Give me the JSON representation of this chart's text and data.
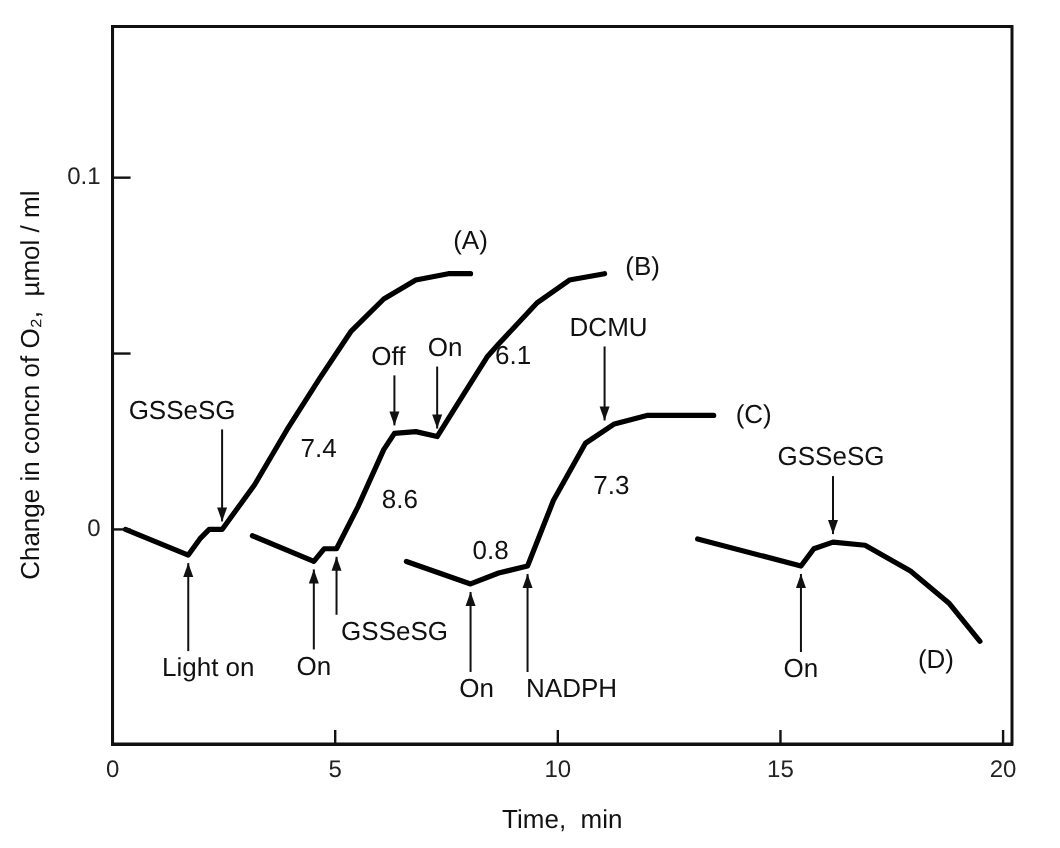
{
  "chart_data": {
    "type": "line",
    "xlabel": "Time,  min",
    "ylabel": "Change in concn of O₂,  µmol / ml",
    "xlim": [
      0,
      20.2
    ],
    "ylim": [
      -0.061,
      0.143
    ],
    "xticks": [
      0,
      5,
      10,
      15,
      20
    ],
    "yticks": [
      0,
      {
        "value": 0.05,
        "label": null
      },
      {
        "value": 0.1,
        "label": "0.1"
      }
    ],
    "grid": false,
    "legend": false,
    "marker": "none",
    "line_style": "solid",
    "series": [
      {
        "color": "#000000",
        "x": [
          0.29,
          1.7,
          1.96,
          2.17,
          2.46,
          3.19,
          3.91,
          4.64,
          5.36,
          6.09,
          6.81,
          7.54,
          8.04
        ],
        "values": [
          0,
          -0.0073,
          -0.0027,
          0,
          0,
          0.0127,
          0.0282,
          0.0427,
          0.0564,
          0.0655,
          0.0709,
          0.0727,
          0.0727
        ]
      },
      {
        "color": "#000000",
        "x": [
          3.14,
          4.52,
          4.75,
          5.03,
          5.51,
          6.09,
          6.33,
          6.81,
          7.29,
          7.83,
          8.41,
          8.67,
          9.54,
          10.26,
          11.05
        ],
        "values": [
          -0.0018,
          -0.0091,
          -0.0055,
          -0.0055,
          0.0064,
          0.0227,
          0.0273,
          0.0278,
          0.0264,
          0.0373,
          0.049,
          0.0527,
          0.0645,
          0.0709,
          0.0727
        ]
      },
      {
        "color": "#000000",
        "x": [
          6.6,
          8.04,
          8.67,
          9.32,
          9.9,
          10.62,
          11.27,
          12.0,
          13.5
        ],
        "values": [
          -0.0091,
          -0.0155,
          -0.0124,
          -0.0104,
          0.0082,
          0.0245,
          0.03,
          0.0324,
          0.0324
        ]
      },
      {
        "color": "#000000",
        "x": [
          13.14,
          15.46,
          15.75,
          16.18,
          16.9,
          17.92,
          18.78,
          19.48
        ],
        "values": [
          -0.0027,
          -0.0104,
          -0.0055,
          -0.0036,
          -0.0045,
          -0.0118,
          -0.0209,
          -0.0318
        ]
      }
    ],
    "annotations": [
      {
        "text": "(A)",
        "x": 8.04,
        "y": 0.0727
      },
      {
        "text": "GSSeSG",
        "x": 2.46,
        "y": 0
      },
      {
        "text": "7.4",
        "x": 3.91,
        "y": 0.0282
      },
      {
        "text": "Light on",
        "x": 1.7,
        "y": -0.0073
      },
      {
        "text": "On",
        "x": 4.52,
        "y": -0.0091
      },
      {
        "text": "GSSeSG",
        "x": 5.03,
        "y": -0.0055
      },
      {
        "text": "8.6",
        "x": 5.51,
        "y": 0.0064
      },
      {
        "text": "Off",
        "x": 6.33,
        "y": 0.0273
      },
      {
        "text": "On",
        "x": 7.29,
        "y": 0.0264
      },
      {
        "text": "6.1",
        "x": 8.41,
        "y": 0.049
      },
      {
        "text": "(B)",
        "x": 11.05,
        "y": 0.0727
      },
      {
        "text": "0.8",
        "x": 8.04,
        "y": -0.0155
      },
      {
        "text": "On",
        "x": 8.04,
        "y": -0.0155
      },
      {
        "text": "NADPH",
        "x": 9.32,
        "y": -0.0104
      },
      {
        "text": "7.3",
        "x": 10.62,
        "y": 0.0245
      },
      {
        "text": "DCMU",
        "x": 11.05,
        "y": 0.0287
      },
      {
        "text": "(C)",
        "x": 13.5,
        "y": 0.0324
      },
      {
        "text": "GSSeSG",
        "x": 16.18,
        "y": -0.0036
      },
      {
        "text": "On",
        "x": 15.46,
        "y": -0.0104
      },
      {
        "text": "(D)",
        "x": 19.48,
        "y": -0.0318
      }
    ]
  }
}
